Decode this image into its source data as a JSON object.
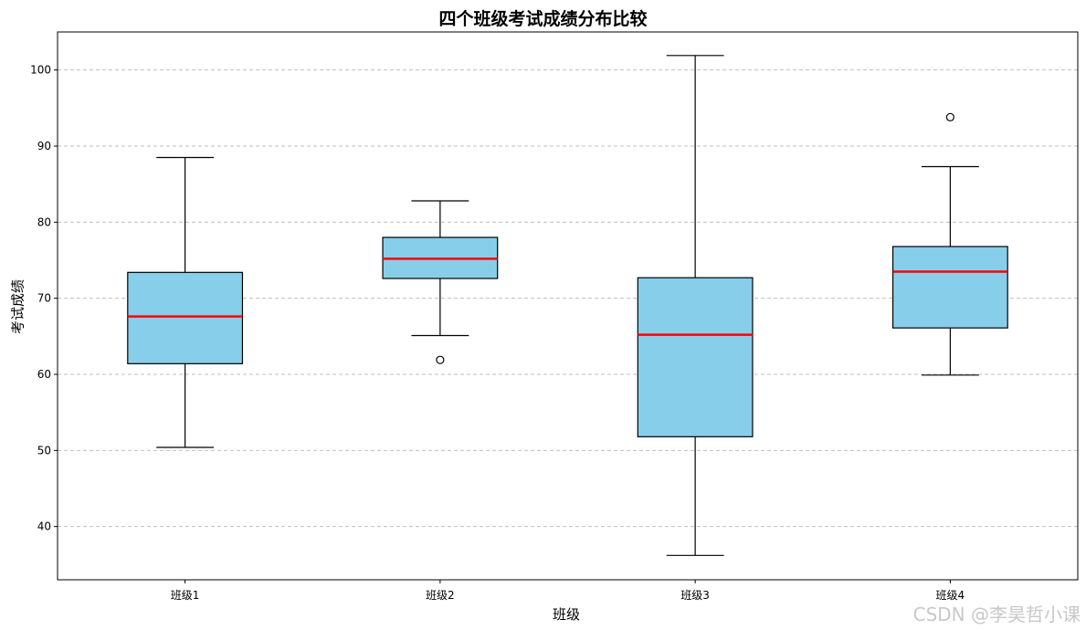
{
  "chart_data": {
    "type": "box",
    "title": "四个班级考试成绩分布比较",
    "xlabel": "班级",
    "ylabel": "考试成绩",
    "categories": [
      "班级1",
      "班级2",
      "班级3",
      "班级4"
    ],
    "ylim": [
      33,
      105
    ],
    "yticks": [
      40,
      50,
      60,
      70,
      80,
      90,
      100
    ],
    "grid": "y-dashed",
    "boxes": [
      {
        "category": "班级1",
        "whisker_low": 50.4,
        "q1": 61.4,
        "median": 67.6,
        "q3": 73.4,
        "whisker_high": 88.5,
        "outliers": []
      },
      {
        "category": "班级2",
        "whisker_low": 65.1,
        "q1": 72.6,
        "median": 75.2,
        "q3": 78.0,
        "whisker_high": 82.8,
        "outliers": [
          61.9
        ]
      },
      {
        "category": "班级3",
        "whisker_low": 36.2,
        "q1": 51.8,
        "median": 65.2,
        "q3": 72.7,
        "whisker_high": 101.9,
        "outliers": []
      },
      {
        "category": "班级4",
        "whisker_low": 59.9,
        "q1": 66.1,
        "median": 73.5,
        "q3": 76.8,
        "whisker_high": 87.3,
        "outliers": [
          93.8
        ]
      }
    ],
    "colors": {
      "box_fill": "#87ceeb",
      "median": "#ff0000",
      "grid": "#b0b0b0"
    }
  },
  "watermark": "CSDN @李昊哲小课"
}
